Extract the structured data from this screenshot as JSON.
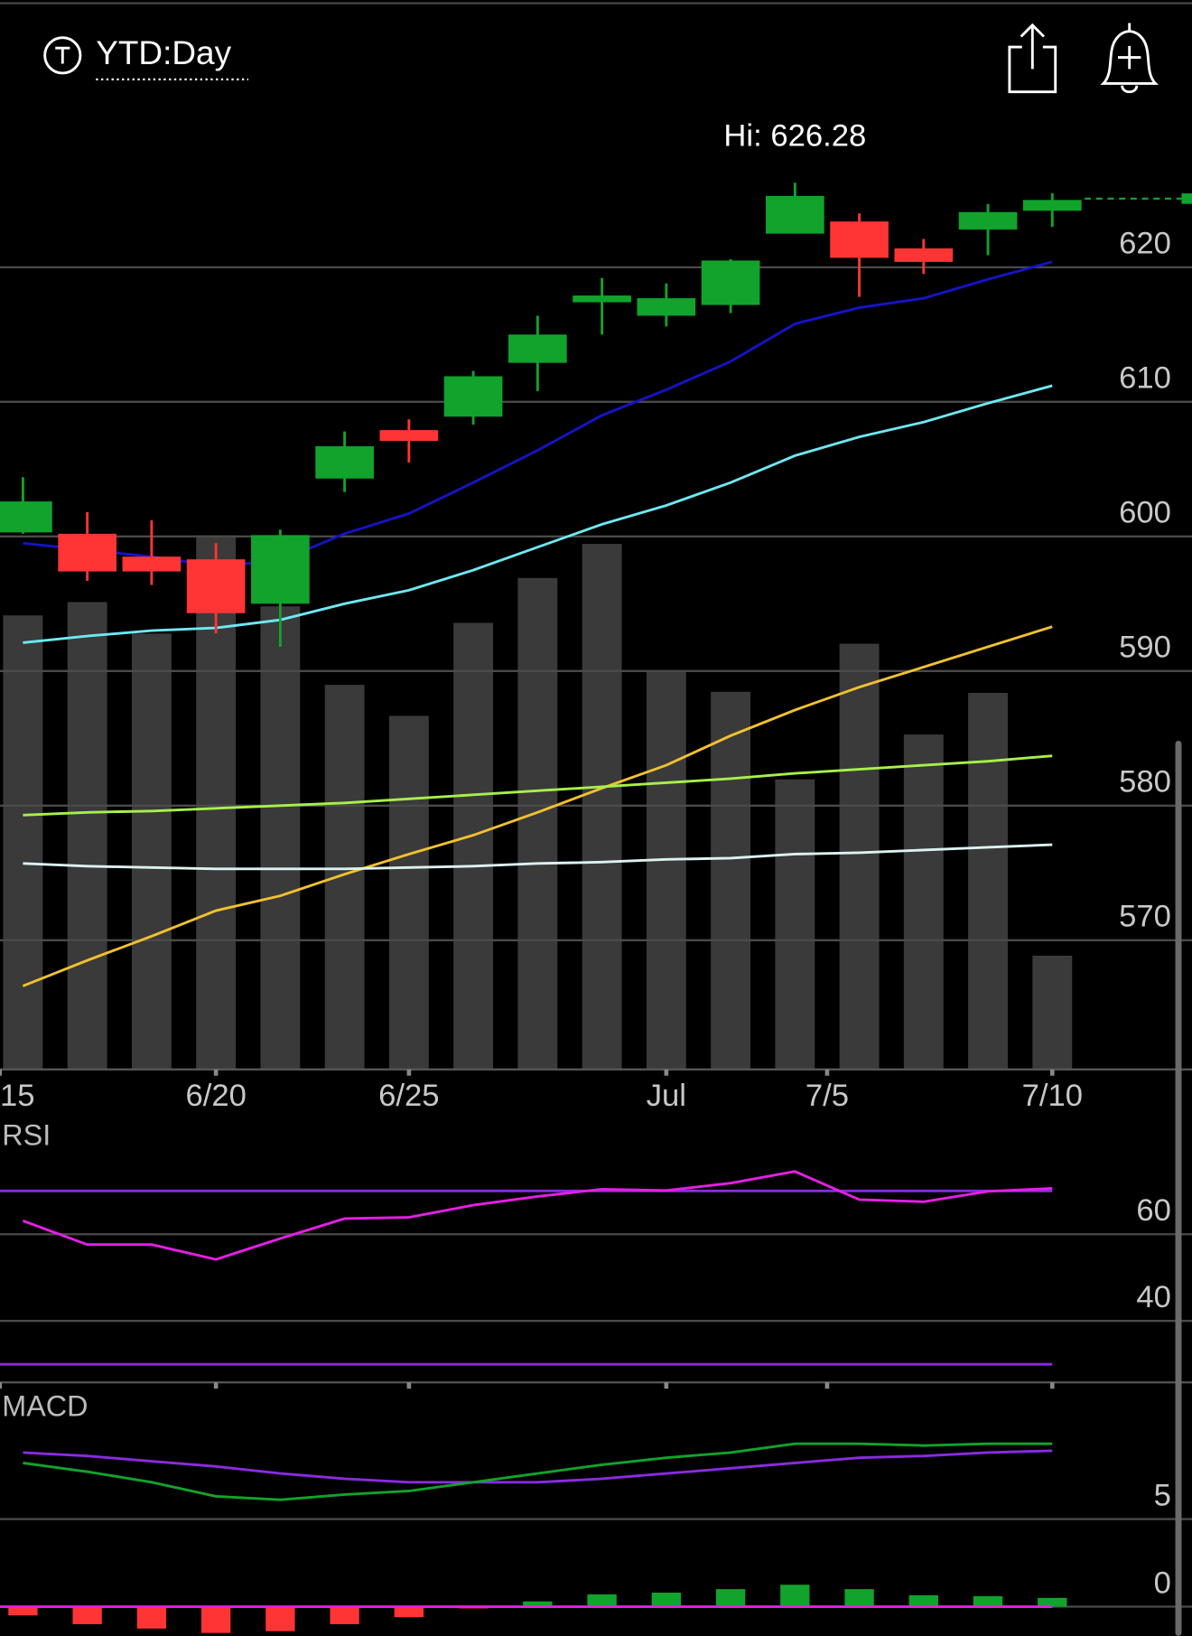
{
  "header": {
    "title": "YTD:Day"
  },
  "chart_data": [
    {
      "type": "candlestick",
      "annotation": "Hi: 626.28",
      "categories": [
        null,
        null,
        null,
        null,
        null,
        null,
        null,
        null,
        null,
        null,
        null,
        null,
        null,
        null,
        null,
        null,
        null
      ],
      "open": [
        600.3,
        600.2,
        598.5,
        598.3,
        595.0,
        604.3,
        607.9,
        608.9,
        612.9,
        617.4,
        616.4,
        617.2,
        622.5,
        623.4,
        621.4,
        622.8,
        624.2
      ],
      "high": [
        604.4,
        601.8,
        601.2,
        599.5,
        600.5,
        607.8,
        608.7,
        612.3,
        616.4,
        619.2,
        618.8,
        620.6,
        626.28,
        624.0,
        622.1,
        624.7,
        625.5
      ],
      "low": [
        600.2,
        596.7,
        596.4,
        592.8,
        591.8,
        603.3,
        605.5,
        608.3,
        610.8,
        615.0,
        615.6,
        616.6,
        622.5,
        617.8,
        619.5,
        620.9,
        623.0
      ],
      "close": [
        602.6,
        597.4,
        597.4,
        594.3,
        600.1,
        606.7,
        607.1,
        611.9,
        615.0,
        617.9,
        617.7,
        620.5,
        625.3,
        620.7,
        620.4,
        624.1,
        625.0
      ],
      "up_color": "#12a32c",
      "down_color": "#ff3535",
      "last_price": 625.1,
      "lines": [
        {
          "color": "#1414c8",
          "values": [
            599.5,
            599.0,
            598.5,
            597.8,
            598.2,
            600.2,
            601.7,
            604.0,
            606.4,
            609.0,
            610.9,
            613.0,
            615.8,
            617.0,
            617.7,
            619.1,
            620.4
          ]
        },
        {
          "color": "#6ee8f2",
          "values": [
            592.1,
            592.6,
            593.0,
            593.2,
            593.8,
            595.0,
            596.0,
            597.5,
            599.2,
            600.9,
            602.3,
            604.0,
            606.0,
            607.4,
            608.5,
            609.9,
            611.2
          ]
        },
        {
          "color": "#f2c12e",
          "values": [
            566.6,
            568.5,
            570.3,
            572.2,
            573.3,
            574.9,
            576.4,
            577.8,
            579.5,
            581.3,
            583.0,
            585.2,
            587.1,
            588.8,
            590.3,
            591.8,
            593.3
          ]
        },
        {
          "color": "#a8f04a",
          "values": [
            579.3,
            579.5,
            579.6,
            579.8,
            580.0,
            580.2,
            580.5,
            580.8,
            581.1,
            581.4,
            581.7,
            582.0,
            582.4,
            582.7,
            583.0,
            583.3,
            583.7
          ]
        },
        {
          "color": "#dcf2f2",
          "values": [
            575.7,
            575.5,
            575.4,
            575.3,
            575.3,
            575.3,
            575.4,
            575.5,
            575.7,
            575.8,
            576.0,
            576.1,
            576.4,
            576.5,
            576.7,
            576.9,
            577.1
          ]
        }
      ],
      "volume": {
        "color": "#3a3a3a",
        "ylim": [
          0,
          100
        ],
        "values": [
          85,
          87.5,
          81.6,
          100,
          86.7,
          72,
          66.2,
          83.6,
          92,
          98.4,
          74.6,
          70.7,
          54.3,
          79.7,
          62.7,
          70.5,
          21.3
        ]
      },
      "ylim": [
        560.4,
        632.1
      ],
      "yticks": [
        570,
        580,
        590,
        600,
        610,
        620
      ],
      "xticks": [
        {
          "value": -0.36,
          "label": "15"
        },
        {
          "value": 3,
          "label": "6/20"
        },
        {
          "value": 6,
          "label": "6/25"
        },
        {
          "value": 10,
          "label": "Jul"
        },
        {
          "value": 12.5,
          "label": "7/5"
        },
        {
          "value": 16,
          "label": "7/10"
        }
      ],
      "grid": true
    },
    {
      "type": "rsi",
      "label": "RSI",
      "color": "#e61ee6",
      "values": [
        63.1,
        57.6,
        57.6,
        54.2,
        59.0,
        63.6,
        63.9,
        66.7,
        68.7,
        70.4,
        70.1,
        71.8,
        74.5,
        68.0,
        67.5,
        69.9,
        70.6
      ],
      "levels": [
        70,
        30
      ],
      "level_color": "#8a2be2",
      "ylim": [
        25.8,
        86
      ],
      "yticks": [
        40,
        60
      ],
      "grid": true
    },
    {
      "type": "macd",
      "label": "MACD",
      "macd": {
        "color": "#12a32c",
        "values": [
          8.2,
          7.7,
          7.1,
          6.3,
          6.1,
          6.4,
          6.6,
          7.1,
          7.6,
          8.1,
          8.5,
          8.8,
          9.3,
          9.3,
          9.2,
          9.3,
          9.3
        ]
      },
      "signal": {
        "color": "#8a2be2",
        "values": [
          8.8,
          8.6,
          8.3,
          8.0,
          7.6,
          7.3,
          7.1,
          7.1,
          7.1,
          7.3,
          7.6,
          7.9,
          8.2,
          8.5,
          8.6,
          8.8,
          8.9
        ]
      },
      "histogram": {
        "up_color": "#12a32c",
        "down_color": "#ff3535",
        "values": [
          -0.5,
          -1.0,
          -1.25,
          -1.5,
          -1.4,
          -1.0,
          -0.6,
          -0.1,
          0.3,
          0.7,
          0.8,
          1.0,
          1.25,
          1.0,
          0.65,
          0.6,
          0.5
        ]
      },
      "zero_color": "#e61ee6",
      "ylim": [
        -1.67,
        12.8
      ],
      "yticks": [
        0,
        5
      ],
      "grid": true
    }
  ]
}
